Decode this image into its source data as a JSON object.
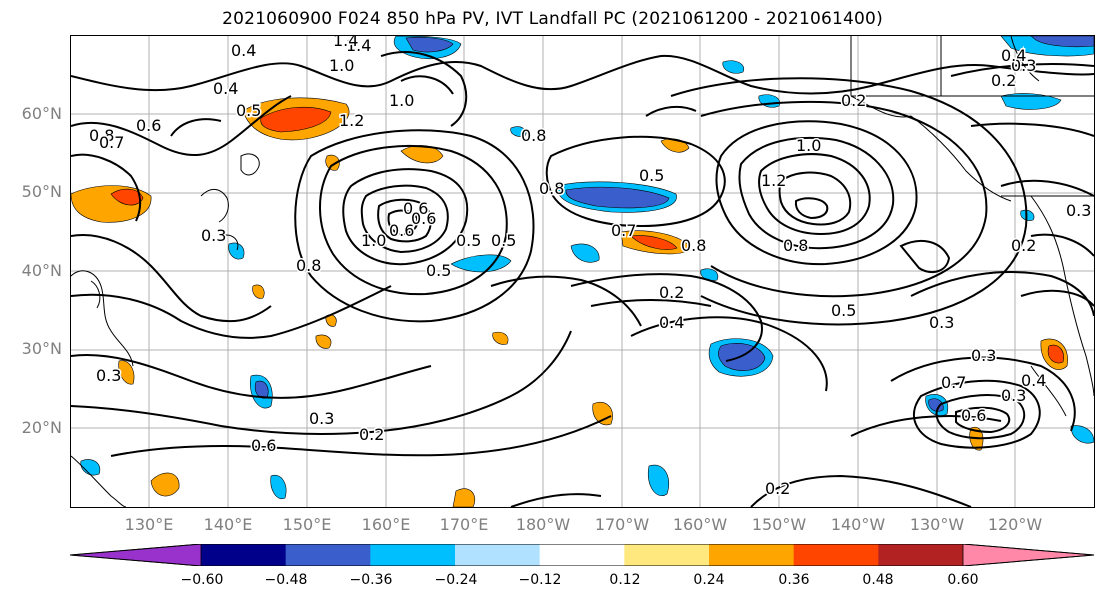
{
  "title": "2021060900 F024 850 hPa PV, IVT Landfall PC (2021061200 - 2021061400)",
  "map": {
    "lat_labels": [
      "60°N",
      "50°N",
      "40°N",
      "30°N",
      "20°N"
    ],
    "lon_labels": [
      "130°E",
      "140°E",
      "150°E",
      "160°E",
      "170°E",
      "180°W",
      "170°W",
      "160°W",
      "150°W",
      "140°W",
      "130°W",
      "120°W"
    ],
    "contour_labels": [
      "1.4",
      "1.0",
      "0.4",
      "0.4",
      "0.3",
      "0.5",
      "0.6",
      "0.8",
      "0.7",
      "1.2",
      "1.0",
      "0.8",
      "1.4",
      "0.8",
      "0.5",
      "0.6",
      "0.5",
      "0.6",
      "0.7",
      "0.8",
      "1.0",
      "1.2",
      "0.2",
      "0.2",
      "0.4",
      "0.3",
      "0.2",
      "0.8",
      "0.3",
      "0.5",
      "0.4",
      "0.5",
      "0.3",
      "0.3",
      "0.3",
      "0.2",
      "0.6",
      "0.7",
      "0.4",
      "0.3",
      "0.2",
      "0.6",
      "0.3",
      "0.8",
      "1.0",
      "0.6",
      "0.5",
      "0.2"
    ]
  },
  "colorbar": {
    "tick_labels": [
      "−0.60",
      "−0.48",
      "−0.36",
      "−0.24",
      "−0.12",
      "0.12",
      "0.24",
      "0.36",
      "0.48",
      "0.60"
    ],
    "colors": [
      "#9932CC",
      "#00008B",
      "#3A5FCD",
      "#00BFFF",
      "#B0E2FF",
      "#FFFFFF",
      "#FFE97F",
      "#FFA500",
      "#FF4500",
      "#B22222",
      "#FF88A8"
    ]
  }
}
